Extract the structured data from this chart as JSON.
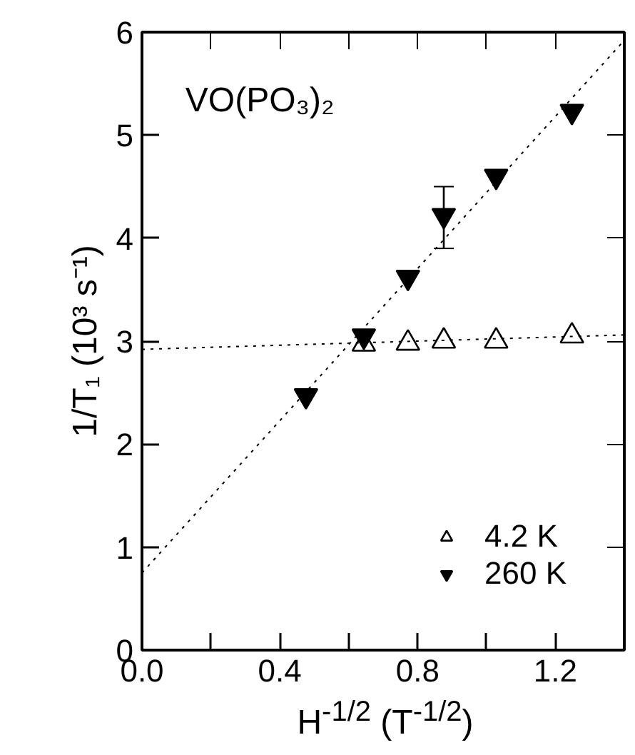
{
  "chart_data": {
    "type": "scatter",
    "xlabel": "H$^{-1/2}$ (T$^{-1/2}$)",
    "ylabel": "1/T₁ (10³ s⁻¹)",
    "annotations": [
      "VO(PO₃)₂"
    ],
    "xlim": [
      0,
      1.4
    ],
    "ylim": [
      0,
      6
    ],
    "xticks": [
      {
        "value": 0,
        "label": "0.0"
      },
      {
        "value": 0.2,
        "label": null
      },
      {
        "value": 0.4,
        "label": "0.4"
      },
      {
        "value": 0.6,
        "label": null
      },
      {
        "value": 0.8,
        "label": "0.8"
      },
      {
        "value": 1.0,
        "label": null
      },
      {
        "value": 1.2,
        "label": "1.2"
      }
    ],
    "yticks": [
      0,
      1,
      2,
      3,
      4,
      5,
      6
    ],
    "grid": false,
    "legend": "bottom right",
    "series": [
      {
        "name": "4.2 K",
        "marker": "triangle",
        "color": "#000000",
        "x": [
          0.644,
          0.772,
          0.876,
          1.028,
          1.248
        ],
        "values": [
          2.97,
          2.98,
          3.0,
          3.0,
          3.05
        ]
      },
      {
        "name": "260 K",
        "marker": "triangle_down",
        "color": "#000000",
        "x": [
          0.476,
          0.644,
          0.772,
          0.876,
          1.028,
          1.248
        ],
        "values": [
          2.47,
          3.05,
          3.62,
          4.22,
          4.6,
          5.23
        ],
        "errors": [
          null,
          null,
          null,
          [
            3.9,
            4.5
          ],
          null,
          null
        ]
      },
      {
        "type": "line",
        "line_style": "dotted",
        "color": "#000000",
        "x": [
          0,
          1.4
        ],
        "values": [
          2.92,
          3.06
        ]
      },
      {
        "type": "line",
        "line_style": "dotted",
        "color": "#000000",
        "x": [
          0,
          1.4
        ],
        "values": [
          0.75,
          5.92
        ]
      }
    ]
  }
}
